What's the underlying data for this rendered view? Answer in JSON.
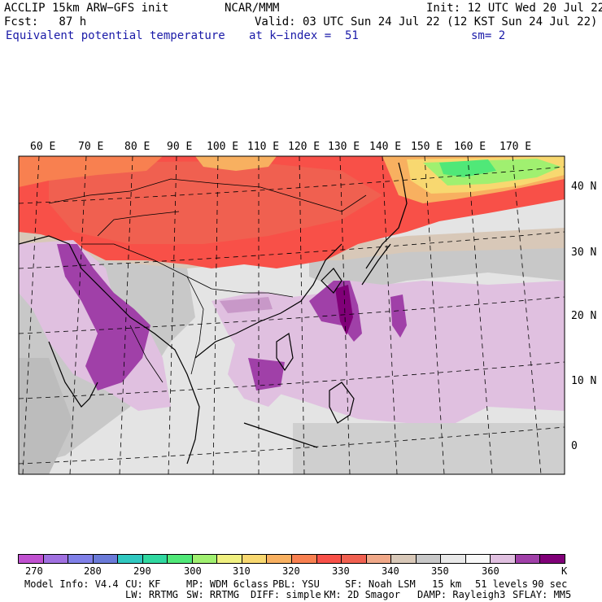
{
  "header": {
    "model": "ACCLIP 15km ARW−GFS init",
    "org": "NCAR/MMM",
    "init": "Init: 12 UTC Wed 20 Jul 22",
    "fcst": "Fcst:   87 h",
    "valid": "Valid: 03 UTC Sun 24 Jul 22 (12 KST Sun 24 Jul 22)",
    "field": "Equivalent potential temperature",
    "level": "at k−index =  51",
    "smooth": "sm= 2"
  },
  "map": {
    "longitude_labels": [
      "60 E",
      "70 E",
      "80 E",
      "90 E",
      "100 E",
      "110 E",
      "120 E",
      "130 E",
      "140 E",
      "150 E",
      "160 E",
      "170 E"
    ],
    "latitude_labels": [
      "40 N",
      "30 N",
      "20 N",
      "10 N",
      "0"
    ]
  },
  "colorbar": {
    "colors": [
      "#c050d0",
      "#a070e0",
      "#8080e8",
      "#6a7ad8",
      "#30c8c0",
      "#30d8a0",
      "#50e878",
      "#a0f070",
      "#f0f080",
      "#f8d870",
      "#f8b060",
      "#f88050",
      "#f85048",
      "#f06050",
      "#f0a888",
      "#d8c8b8",
      "#c8c8c8",
      "#e8e8e8",
      "#f8f8f8",
      "#e0c0e0",
      "#a040a8",
      "#800078"
    ],
    "ticks": [
      "270",
      "280",
      "290",
      "300",
      "310",
      "320",
      "330",
      "340",
      "350",
      "360"
    ],
    "unit": "K"
  },
  "footer": {
    "line1": [
      "Model Info: V4.4",
      "CU: KF",
      "MP: WDM 6class",
      "PBL: YSU",
      "SF: Noah LSM",
      "15 km",
      "51 levels",
      "90 sec"
    ],
    "line2": [
      "LW: RRTMG",
      "SW: RRTMG",
      "DIFF: simple",
      "KM: 2D Smagor",
      "DAMP: Rayleigh3",
      "SFLAY: MM5"
    ]
  }
}
